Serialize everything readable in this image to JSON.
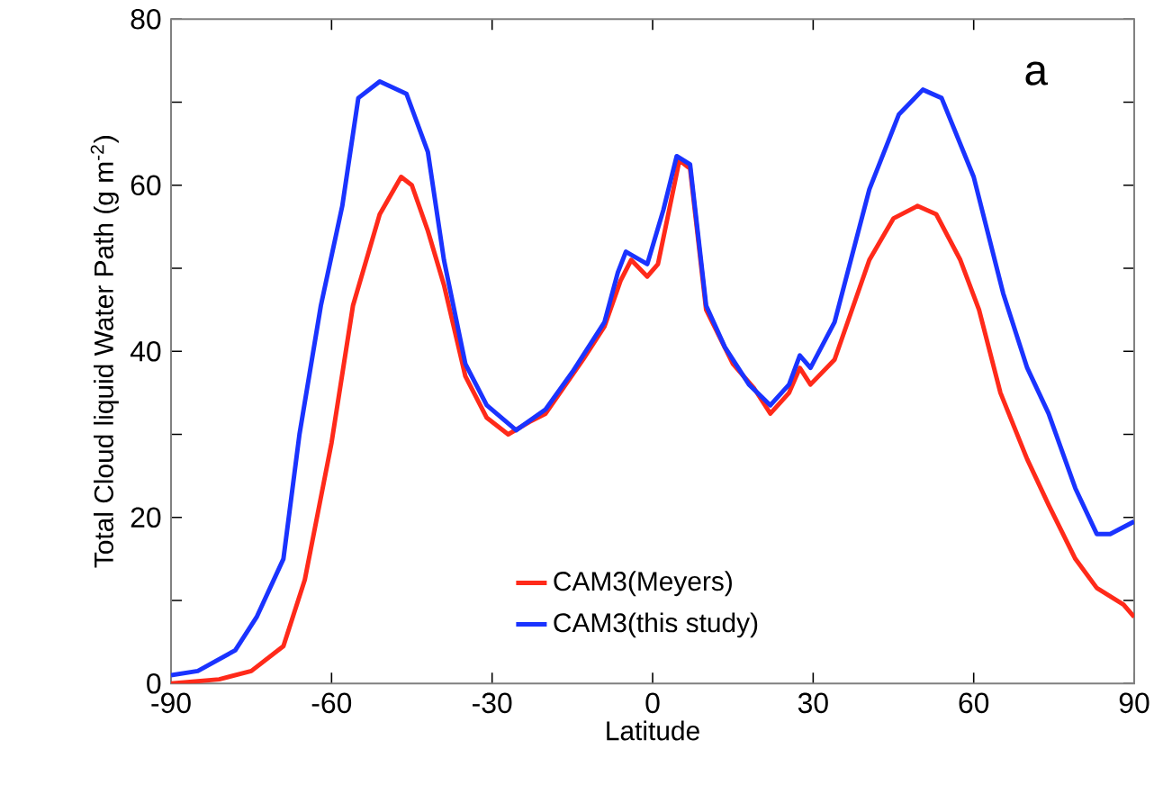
{
  "chart_data": {
    "type": "line",
    "xlabel": "Latitude",
    "ylabel": "Total Cloud liquid Water Path (g m$^{-2}$)",
    "annotations": [
      "a"
    ],
    "xlim": [
      -90,
      90
    ],
    "ylim": [
      0,
      80
    ],
    "xticks": [
      -90,
      -60,
      -30,
      0,
      30,
      60,
      90
    ],
    "yticks": [
      0,
      {
        "value": 10,
        "label": null
      },
      20,
      {
        "value": 30,
        "label": null
      },
      40,
      {
        "value": 50,
        "label": null
      },
      60,
      {
        "value": 70,
        "label": null
      },
      80
    ],
    "legend": "bottom",
    "grid": false,
    "marker": "none",
    "line_style": "solid",
    "series": [
      {
        "name": "CAM3(Meyers)",
        "color": "#ff2a1a",
        "x": [
          -90,
          -81,
          -75,
          -69,
          -65,
          -60,
          -56,
          -51,
          -47,
          -45,
          -42,
          -39,
          -35,
          -31,
          -27,
          -23,
          -20,
          -13,
          -9,
          -6,
          -4,
          -1,
          1,
          5,
          7,
          10,
          15,
          19,
          22,
          25.5,
          27.5,
          29.5,
          34,
          40.5,
          45,
          49.5,
          53,
          57.5,
          61,
          65,
          70,
          74,
          79,
          83,
          88,
          90
        ],
        "values": [
          0,
          0.5,
          1.5,
          4.5,
          12.5,
          29,
          45.5,
          56.5,
          61,
          60,
          54.5,
          48,
          37,
          32,
          30,
          31.5,
          32.5,
          39,
          43,
          48.5,
          51,
          49,
          50.5,
          63,
          62,
          45,
          38.5,
          35.5,
          32.5,
          35,
          38,
          36,
          39,
          51,
          56,
          57.5,
          56.5,
          51,
          45,
          35,
          27,
          21.5,
          15,
          11.5,
          9.5,
          8
        ]
      },
      {
        "name": "CAM3(this study)",
        "color": "#1a33ff",
        "x": [
          -90,
          -85,
          -78,
          -74,
          -69,
          -66,
          -62,
          -58,
          -55,
          -51,
          -46,
          -42,
          -39,
          -35,
          -31,
          -25.5,
          -20,
          -15,
          -9,
          -6.5,
          -5,
          -1,
          2,
          4.5,
          7,
          10,
          13.5,
          18,
          22,
          25.5,
          27.5,
          29.5,
          34,
          40.5,
          46,
          50.5,
          54,
          60,
          65.5,
          70,
          74,
          79,
          83,
          85.5,
          90
        ],
        "values": [
          1,
          1.5,
          4,
          8,
          15,
          30,
          45.5,
          57.5,
          70.5,
          72.5,
          71,
          64,
          51,
          38.5,
          33.5,
          30.5,
          33,
          37.5,
          43.5,
          49.5,
          52,
          50.5,
          57,
          63.5,
          62.5,
          45.5,
          40.5,
          36,
          33.5,
          36,
          39.5,
          38,
          43.5,
          59.5,
          68.5,
          71.5,
          70.5,
          61,
          47,
          38,
          32.5,
          23.5,
          18,
          18,
          19.5
        ]
      }
    ]
  }
}
